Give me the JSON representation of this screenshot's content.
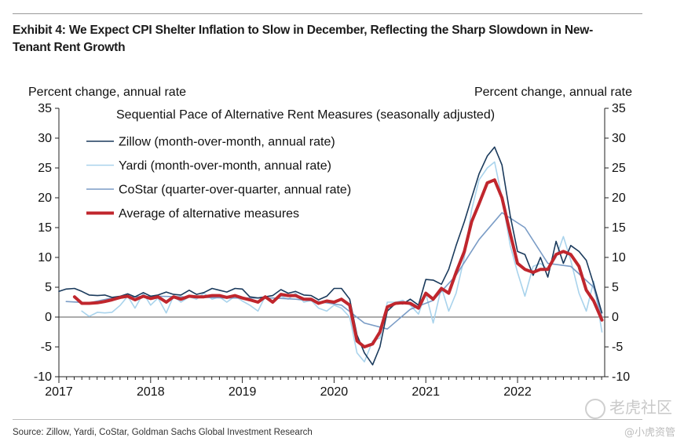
{
  "header": {
    "title": "Exhibit 4: We Expect CPI Shelter Inflation to Slow in December, Reflecting the Sharp Slowdown in New-Tenant Rent Growth"
  },
  "footer": {
    "source": "Source: Zillow, Yardi, CoStar, Goldman Sachs Global Investment Research"
  },
  "watermark": {
    "main": "老虎社区",
    "sub": "@小虎资管"
  },
  "chart_data": {
    "type": "line",
    "title": "Sequential Pace of Alternative Rent Measures (seasonally adjusted)",
    "ylabel_left": "Percent change, annual rate",
    "ylabel_right": "Percent change, annual rate",
    "ylim": [
      -10,
      35
    ],
    "yticks": [
      -10,
      -5,
      0,
      5,
      10,
      15,
      20,
      25,
      30,
      35
    ],
    "xlim": [
      2017.0,
      2022.95
    ],
    "xticks": [
      "2017",
      "2018",
      "2019",
      "2020",
      "2021",
      "2022"
    ],
    "grid": false,
    "legend_position": "top-left",
    "series": [
      {
        "name": "Zillow (month-over-month, annual rate)",
        "color": "#1a3a5c",
        "width": 1.6,
        "points": [
          [
            2017.0,
            4.3
          ],
          [
            2017.08,
            4.7
          ],
          [
            2017.17,
            4.8
          ],
          [
            2017.25,
            4.3
          ],
          [
            2017.33,
            3.7
          ],
          [
            2017.42,
            3.6
          ],
          [
            2017.5,
            3.7
          ],
          [
            2017.58,
            3.3
          ],
          [
            2017.67,
            3.5
          ],
          [
            2017.75,
            3.9
          ],
          [
            2017.83,
            3.4
          ],
          [
            2017.92,
            4.1
          ],
          [
            2018.0,
            3.5
          ],
          [
            2018.08,
            3.7
          ],
          [
            2018.17,
            4.2
          ],
          [
            2018.25,
            3.8
          ],
          [
            2018.33,
            3.7
          ],
          [
            2018.42,
            4.5
          ],
          [
            2018.5,
            3.8
          ],
          [
            2018.58,
            4.1
          ],
          [
            2018.67,
            4.8
          ],
          [
            2018.75,
            4.5
          ],
          [
            2018.83,
            4.2
          ],
          [
            2018.92,
            4.8
          ],
          [
            2019.0,
            4.7
          ],
          [
            2019.08,
            3.4
          ],
          [
            2019.17,
            3.2
          ],
          [
            2019.25,
            3.4
          ],
          [
            2019.33,
            3.6
          ],
          [
            2019.42,
            4.6
          ],
          [
            2019.5,
            4.0
          ],
          [
            2019.58,
            4.3
          ],
          [
            2019.67,
            3.7
          ],
          [
            2019.75,
            3.6
          ],
          [
            2019.83,
            2.9
          ],
          [
            2019.92,
            3.5
          ],
          [
            2020.0,
            4.8
          ],
          [
            2020.08,
            4.8
          ],
          [
            2020.17,
            3.0
          ],
          [
            2020.25,
            -3.0
          ],
          [
            2020.33,
            -6.0
          ],
          [
            2020.42,
            -8.0
          ],
          [
            2020.5,
            -5.0
          ],
          [
            2020.58,
            1.0
          ],
          [
            2020.67,
            2.3
          ],
          [
            2020.75,
            2.2
          ],
          [
            2020.83,
            3.0
          ],
          [
            2020.92,
            2.0
          ],
          [
            2021.0,
            6.3
          ],
          [
            2021.08,
            6.2
          ],
          [
            2021.17,
            5.5
          ],
          [
            2021.25,
            8.0
          ],
          [
            2021.33,
            12.0
          ],
          [
            2021.42,
            16.0
          ],
          [
            2021.5,
            20.0
          ],
          [
            2021.58,
            24.0
          ],
          [
            2021.67,
            27.0
          ],
          [
            2021.75,
            28.5
          ],
          [
            2021.83,
            25.5
          ],
          [
            2021.92,
            17.0
          ],
          [
            2022.0,
            11.0
          ],
          [
            2022.08,
            10.5
          ],
          [
            2022.17,
            7.0
          ],
          [
            2022.25,
            10.0
          ],
          [
            2022.33,
            6.7
          ],
          [
            2022.42,
            12.7
          ],
          [
            2022.5,
            9.0
          ],
          [
            2022.58,
            12.0
          ],
          [
            2022.67,
            11.0
          ],
          [
            2022.75,
            9.5
          ],
          [
            2022.83,
            5.5
          ],
          [
            2022.92,
            0.7
          ]
        ]
      },
      {
        "name": "Yardi (month-over-month, annual rate)",
        "color": "#a9d3ec",
        "width": 1.6,
        "points": [
          [
            2017.25,
            1.0
          ],
          [
            2017.33,
            0.1
          ],
          [
            2017.42,
            0.8
          ],
          [
            2017.5,
            0.7
          ],
          [
            2017.58,
            0.8
          ],
          [
            2017.67,
            2.0
          ],
          [
            2017.75,
            3.5
          ],
          [
            2017.83,
            1.5
          ],
          [
            2017.92,
            4.0
          ],
          [
            2018.0,
            2.0
          ],
          [
            2018.08,
            3.2
          ],
          [
            2018.17,
            0.7
          ],
          [
            2018.25,
            3.5
          ],
          [
            2018.33,
            2.5
          ],
          [
            2018.42,
            3.4
          ],
          [
            2018.5,
            3.0
          ],
          [
            2018.58,
            4.0
          ],
          [
            2018.67,
            3.0
          ],
          [
            2018.75,
            3.4
          ],
          [
            2018.83,
            2.5
          ],
          [
            2018.92,
            3.5
          ],
          [
            2019.0,
            2.7
          ],
          [
            2019.08,
            2.0
          ],
          [
            2019.17,
            1.0
          ],
          [
            2019.25,
            3.5
          ],
          [
            2019.33,
            2.5
          ],
          [
            2019.42,
            3.5
          ],
          [
            2019.5,
            3.0
          ],
          [
            2019.58,
            4.0
          ],
          [
            2019.67,
            2.5
          ],
          [
            2019.75,
            2.8
          ],
          [
            2019.83,
            1.5
          ],
          [
            2019.92,
            1.0
          ],
          [
            2020.0,
            2.0
          ],
          [
            2020.08,
            1.5
          ],
          [
            2020.17,
            0.0
          ],
          [
            2020.25,
            -6.0
          ],
          [
            2020.33,
            -7.5
          ],
          [
            2020.42,
            -4.0
          ],
          [
            2020.5,
            -3.5
          ],
          [
            2020.58,
            2.5
          ],
          [
            2020.67,
            2.5
          ],
          [
            2020.75,
            2.8
          ],
          [
            2020.83,
            2.0
          ],
          [
            2020.92,
            0.5
          ],
          [
            2021.0,
            4.0
          ],
          [
            2021.08,
            -1.0
          ],
          [
            2021.17,
            5.0
          ],
          [
            2021.25,
            1.0
          ],
          [
            2021.33,
            4.0
          ],
          [
            2021.42,
            10.0
          ],
          [
            2021.5,
            18.0
          ],
          [
            2021.58,
            23.0
          ],
          [
            2021.67,
            25.0
          ],
          [
            2021.75,
            26.0
          ],
          [
            2021.83,
            20.0
          ],
          [
            2021.92,
            12.0
          ],
          [
            2022.0,
            7.5
          ],
          [
            2022.08,
            3.5
          ],
          [
            2022.17,
            8.5
          ],
          [
            2022.25,
            9.0
          ],
          [
            2022.33,
            8.0
          ],
          [
            2022.42,
            10.0
          ],
          [
            2022.5,
            13.5
          ],
          [
            2022.58,
            9.5
          ],
          [
            2022.67,
            4.0
          ],
          [
            2022.75,
            1.0
          ],
          [
            2022.83,
            6.0
          ],
          [
            2022.92,
            -2.5
          ]
        ]
      },
      {
        "name": "CoStar (quarter-over-quarter, annual rate)",
        "color": "#7a9cc6",
        "width": 1.6,
        "points": [
          [
            2017.08,
            2.6
          ],
          [
            2017.33,
            2.4
          ],
          [
            2017.58,
            3.2
          ],
          [
            2017.83,
            3.4
          ],
          [
            2018.08,
            3.5
          ],
          [
            2018.33,
            3.4
          ],
          [
            2018.58,
            3.3
          ],
          [
            2018.83,
            3.2
          ],
          [
            2019.08,
            3.2
          ],
          [
            2019.33,
            3.2
          ],
          [
            2019.58,
            3.0
          ],
          [
            2019.83,
            2.6
          ],
          [
            2020.08,
            2.0
          ],
          [
            2020.33,
            -1.0
          ],
          [
            2020.58,
            -2.0
          ],
          [
            2020.83,
            1.3
          ],
          [
            2021.08,
            2.8
          ],
          [
            2021.33,
            7.0
          ],
          [
            2021.58,
            13.0
          ],
          [
            2021.83,
            17.5
          ],
          [
            2022.08,
            15.0
          ],
          [
            2022.33,
            9.0
          ],
          [
            2022.58,
            8.5
          ],
          [
            2022.83,
            5.0
          ],
          [
            2022.92,
            0.0
          ]
        ]
      },
      {
        "name": "Average of alternative measures",
        "color": "#c0262d",
        "width": 4,
        "points": [
          [
            2017.17,
            3.4
          ],
          [
            2017.25,
            2.3
          ],
          [
            2017.33,
            2.3
          ],
          [
            2017.42,
            2.4
          ],
          [
            2017.5,
            2.6
          ],
          [
            2017.58,
            2.9
          ],
          [
            2017.67,
            3.3
          ],
          [
            2017.75,
            3.5
          ],
          [
            2017.83,
            2.9
          ],
          [
            2017.92,
            3.5
          ],
          [
            2018.0,
            3.1
          ],
          [
            2018.08,
            3.4
          ],
          [
            2018.17,
            2.5
          ],
          [
            2018.25,
            3.4
          ],
          [
            2018.33,
            3.0
          ],
          [
            2018.42,
            3.5
          ],
          [
            2018.5,
            3.4
          ],
          [
            2018.58,
            3.4
          ],
          [
            2018.67,
            3.6
          ],
          [
            2018.75,
            3.6
          ],
          [
            2018.83,
            3.3
          ],
          [
            2018.92,
            3.6
          ],
          [
            2019.0,
            3.2
          ],
          [
            2019.08,
            2.9
          ],
          [
            2019.17,
            2.5
          ],
          [
            2019.25,
            3.4
          ],
          [
            2019.33,
            2.5
          ],
          [
            2019.42,
            3.8
          ],
          [
            2019.5,
            3.6
          ],
          [
            2019.58,
            3.6
          ],
          [
            2019.67,
            3.0
          ],
          [
            2019.75,
            3.0
          ],
          [
            2019.83,
            2.3
          ],
          [
            2019.92,
            2.7
          ],
          [
            2020.0,
            2.5
          ],
          [
            2020.08,
            3.0
          ],
          [
            2020.17,
            2.0
          ],
          [
            2020.25,
            -4.0
          ],
          [
            2020.33,
            -5.0
          ],
          [
            2020.42,
            -4.5
          ],
          [
            2020.5,
            -2.5
          ],
          [
            2020.58,
            1.7
          ],
          [
            2020.67,
            2.3
          ],
          [
            2020.75,
            2.4
          ],
          [
            2020.83,
            2.3
          ],
          [
            2020.92,
            1.5
          ],
          [
            2021.0,
            4.0
          ],
          [
            2021.08,
            3.0
          ],
          [
            2021.17,
            4.8
          ],
          [
            2021.25,
            4.0
          ],
          [
            2021.33,
            7.5
          ],
          [
            2021.42,
            11.0
          ],
          [
            2021.5,
            16.0
          ],
          [
            2021.58,
            19.0
          ],
          [
            2021.67,
            22.5
          ],
          [
            2021.75,
            23.0
          ],
          [
            2021.83,
            20.0
          ],
          [
            2021.92,
            14.0
          ],
          [
            2022.0,
            9.0
          ],
          [
            2022.08,
            8.0
          ],
          [
            2022.17,
            7.5
          ],
          [
            2022.25,
            8.0
          ],
          [
            2022.33,
            8.0
          ],
          [
            2022.42,
            10.5
          ],
          [
            2022.5,
            11.0
          ],
          [
            2022.58,
            10.5
          ],
          [
            2022.67,
            8.5
          ],
          [
            2022.75,
            4.5
          ],
          [
            2022.83,
            2.7
          ],
          [
            2022.92,
            -0.5
          ]
        ]
      }
    ]
  }
}
